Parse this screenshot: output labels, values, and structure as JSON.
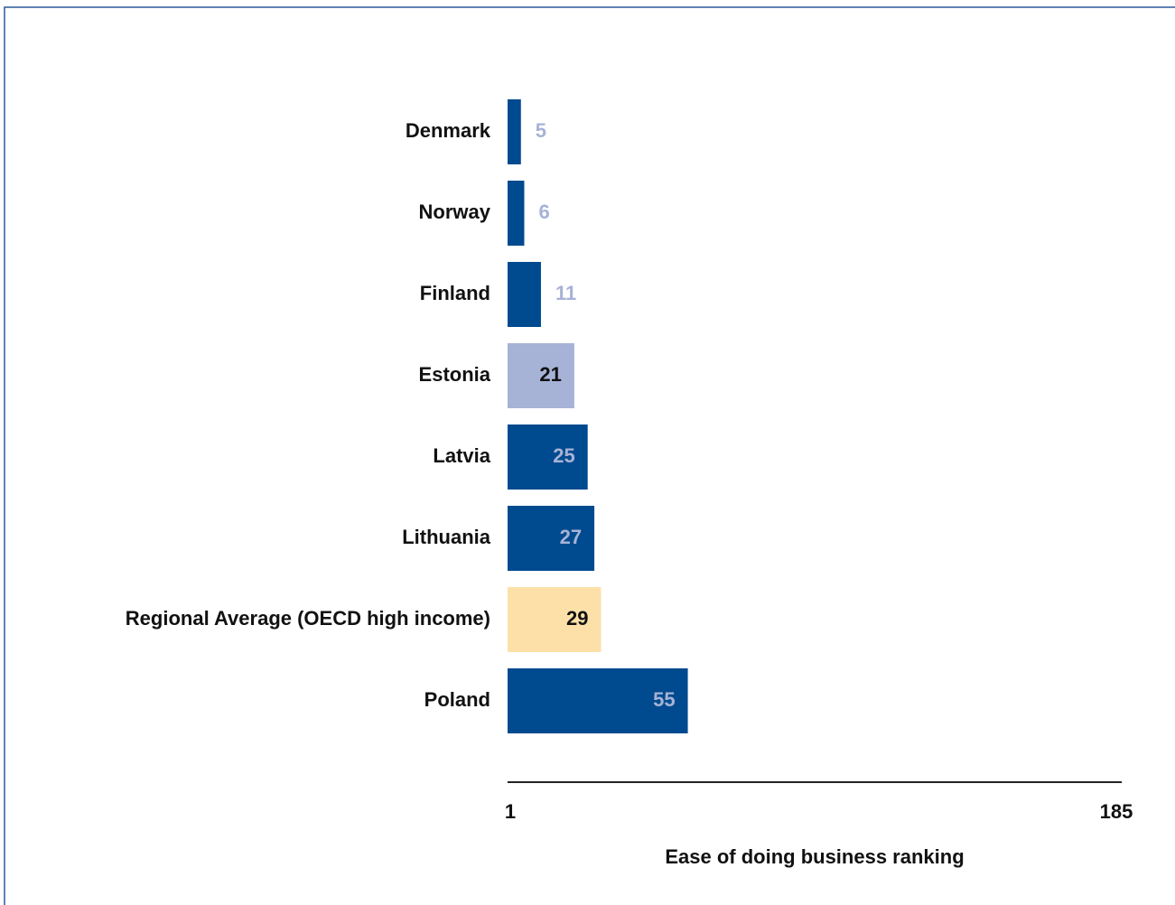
{
  "chart_data": {
    "type": "hbar",
    "x_label": "Ease of doing business ranking",
    "categories": [
      "Denmark",
      "Norway",
      "Finland",
      "Estonia",
      "Latvia",
      "Lithuania",
      "Regional Average (OECD high income)",
      "Poland"
    ],
    "values": [
      5,
      6,
      11,
      21,
      25,
      27,
      29,
      55
    ],
    "colors": [
      "#004a8f",
      "#004a8f",
      "#004a8f",
      "#a6b3d6",
      "#004a8f",
      "#004a8f",
      "#fde0a8",
      "#004a8f"
    ],
    "xlim": [
      1,
      185
    ],
    "xticks": [
      1,
      185
    ],
    "grid": false
  }
}
